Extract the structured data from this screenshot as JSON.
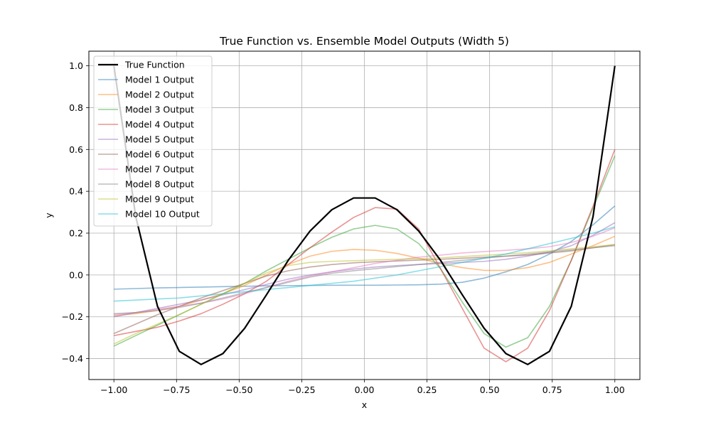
{
  "chart_data": {
    "type": "line",
    "title": "True Function vs. Ensemble Model Outputs (Width 5)",
    "xlabel": "x",
    "ylabel": "y",
    "xlim": [
      -1.1,
      1.1
    ],
    "ylim": [
      -0.5,
      1.07
    ],
    "x_ticks": [
      -1.0,
      -0.75,
      -0.5,
      -0.25,
      0.0,
      0.25,
      0.5,
      0.75,
      1.0
    ],
    "x_tick_labels": [
      "−1.00",
      "−0.75",
      "−0.50",
      "−0.25",
      "0.00",
      "0.25",
      "0.50",
      "0.75",
      "1.00"
    ],
    "y_ticks": [
      -0.4,
      -0.2,
      0.0,
      0.2,
      0.4,
      0.6,
      0.8,
      1.0
    ],
    "y_tick_labels": [
      "−0.4",
      "−0.2",
      "0.0",
      "0.2",
      "0.4",
      "0.6",
      "0.8",
      "1.0"
    ],
    "grid": true,
    "legend_position": "top-left",
    "x": [
      -1.0,
      -0.913,
      -0.826,
      -0.739,
      -0.652,
      -0.565,
      -0.478,
      -0.391,
      -0.304,
      -0.217,
      -0.13,
      -0.043,
      0.043,
      0.13,
      0.217,
      0.304,
      0.391,
      0.478,
      0.565,
      0.652,
      0.739,
      0.826,
      0.913,
      1.0
    ],
    "series": [
      {
        "name": "True Function",
        "color": "#000000",
        "values": [
          1.0,
          0.28,
          -0.15,
          -0.365,
          -0.428,
          -0.376,
          -0.255,
          -0.095,
          0.07,
          0.21,
          0.312,
          0.368,
          0.368,
          0.312,
          0.21,
          0.07,
          -0.095,
          -0.255,
          -0.376,
          -0.428,
          -0.365,
          -0.15,
          0.28,
          1.0
        ]
      },
      {
        "name": "Model 1 Output",
        "color": "#1f77b4",
        "values": [
          -0.068,
          -0.065,
          -0.062,
          -0.06,
          -0.058,
          -0.056,
          -0.054,
          -0.052,
          -0.051,
          -0.05,
          -0.049,
          -0.049,
          -0.049,
          -0.048,
          -0.047,
          -0.044,
          -0.035,
          -0.015,
          0.015,
          0.05,
          0.1,
          0.16,
          0.24,
          0.33
        ]
      },
      {
        "name": "Model 2 Output",
        "color": "#ff7f0e",
        "values": [
          -0.195,
          -0.185,
          -0.17,
          -0.15,
          -0.12,
          -0.09,
          -0.05,
          0.0,
          0.05,
          0.09,
          0.113,
          0.122,
          0.118,
          0.103,
          0.08,
          0.055,
          0.035,
          0.022,
          0.022,
          0.035,
          0.06,
          0.1,
          0.14,
          0.185
        ]
      },
      {
        "name": "Model 3 Output",
        "color": "#2ca02c",
        "values": [
          -0.34,
          -0.29,
          -0.24,
          -0.19,
          -0.14,
          -0.09,
          -0.04,
          0.02,
          0.075,
          0.13,
          0.18,
          0.22,
          0.237,
          0.22,
          0.15,
          0.03,
          -0.13,
          -0.28,
          -0.345,
          -0.3,
          -0.15,
          0.07,
          0.32,
          0.57
        ]
      },
      {
        "name": "Model 4 Output",
        "color": "#d62728",
        "values": [
          -0.29,
          -0.27,
          -0.25,
          -0.22,
          -0.185,
          -0.14,
          -0.09,
          -0.03,
          0.05,
          0.13,
          0.205,
          0.275,
          0.322,
          0.315,
          0.22,
          0.03,
          -0.16,
          -0.35,
          -0.415,
          -0.35,
          -0.17,
          0.07,
          0.33,
          0.6
        ]
      },
      {
        "name": "Model 5 Output",
        "color": "#9467bd",
        "values": [
          -0.2,
          -0.18,
          -0.16,
          -0.14,
          -0.12,
          -0.095,
          -0.07,
          -0.045,
          -0.02,
          0.0,
          0.015,
          0.028,
          0.038,
          0.045,
          0.05,
          0.055,
          0.06,
          0.065,
          0.075,
          0.09,
          0.11,
          0.14,
          0.19,
          0.25
        ]
      },
      {
        "name": "Model 6 Output",
        "color": "#8c564b",
        "values": [
          -0.28,
          -0.235,
          -0.19,
          -0.15,
          -0.11,
          -0.075,
          -0.04,
          -0.005,
          0.02,
          0.038,
          0.05,
          0.058,
          0.063,
          0.067,
          0.071,
          0.075,
          0.08,
          0.085,
          0.09,
          0.095,
          0.105,
          0.115,
          0.13,
          0.145
        ]
      },
      {
        "name": "Model 7 Output",
        "color": "#e377c2",
        "values": [
          -0.19,
          -0.18,
          -0.165,
          -0.15,
          -0.135,
          -0.115,
          -0.09,
          -0.06,
          -0.03,
          -0.005,
          0.015,
          0.035,
          0.055,
          0.07,
          0.085,
          0.095,
          0.105,
          0.112,
          0.118,
          0.125,
          0.135,
          0.155,
          0.185,
          0.225
        ]
      },
      {
        "name": "Model 8 Output",
        "color": "#7f7f7f",
        "values": [
          -0.185,
          -0.18,
          -0.17,
          -0.155,
          -0.135,
          -0.11,
          -0.085,
          -0.06,
          -0.035,
          -0.01,
          0.008,
          0.02,
          0.03,
          0.04,
          0.05,
          0.06,
          0.07,
          0.08,
          0.09,
          0.1,
          0.11,
          0.12,
          0.13,
          0.14
        ]
      },
      {
        "name": "Model 9 Output",
        "color": "#bcbd22",
        "values": [
          -0.33,
          -0.28,
          -0.235,
          -0.19,
          -0.14,
          -0.09,
          -0.04,
          0.01,
          0.045,
          0.06,
          0.065,
          0.068,
          0.072,
          0.075,
          0.078,
          0.082,
          0.088,
          0.094,
          0.1,
          0.107,
          0.115,
          0.125,
          0.135,
          0.145
        ]
      },
      {
        "name": "Model 10 Output",
        "color": "#17becf",
        "values": [
          -0.125,
          -0.12,
          -0.115,
          -0.11,
          -0.1,
          -0.09,
          -0.08,
          -0.07,
          -0.06,
          -0.05,
          -0.04,
          -0.03,
          -0.015,
          0.0,
          0.02,
          0.04,
          0.06,
          0.08,
          0.1,
          0.125,
          0.15,
          0.175,
          0.2,
          0.23
        ]
      }
    ]
  }
}
